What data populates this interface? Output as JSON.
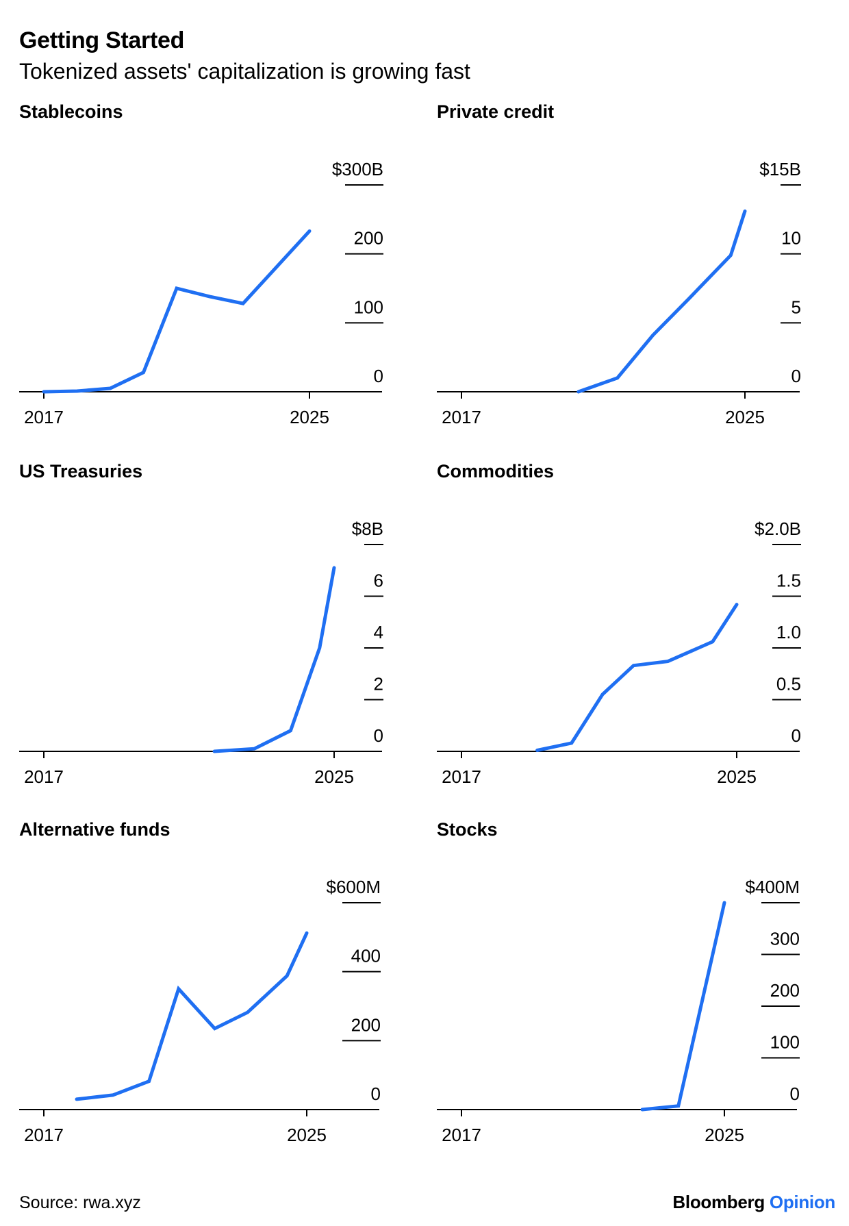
{
  "title": "Getting Started",
  "subtitle": "Tokenized assets' capitalization is growing fast",
  "source": "Source: rwa.xyz",
  "logo": {
    "brand": "Bloomberg",
    "section": "Opinion"
  },
  "colors": {
    "line": "#1f6ff2",
    "axis": "#000000",
    "text": "#000000",
    "accent": "#1f6ff2"
  },
  "chart_data": [
    {
      "type": "line",
      "title": "Stablecoins",
      "xlim": [
        2017,
        2025
      ],
      "x_ticks": [
        2017,
        2025
      ],
      "x_tick_labels": [
        "2017",
        "2025"
      ],
      "ylim": [
        0,
        300
      ],
      "y_ticks": [
        0,
        100,
        200,
        300
      ],
      "y_tick_labels": [
        "0",
        "100",
        "200",
        "$300B"
      ],
      "x": [
        2017,
        2018,
        2019,
        2020,
        2021,
        2022,
        2023,
        2025
      ],
      "values": [
        0,
        1,
        5,
        28,
        150,
        138,
        128,
        233
      ]
    },
    {
      "type": "line",
      "title": "Private credit",
      "xlim": [
        2017,
        2025
      ],
      "x_ticks": [
        2017,
        2025
      ],
      "x_tick_labels": [
        "2017",
        "2025"
      ],
      "ylim": [
        0,
        15
      ],
      "y_ticks": [
        0,
        5,
        10,
        15
      ],
      "y_tick_labels": [
        "0",
        "5",
        "10",
        "$15B"
      ],
      "x": [
        2020.3,
        2021.4,
        2022.4,
        2023.4,
        2024.6,
        2025
      ],
      "values": [
        0,
        1,
        4.1,
        6.7,
        9.9,
        13.1
      ]
    },
    {
      "type": "line",
      "title": "US Treasuries",
      "xlim": [
        2017,
        2025
      ],
      "x_ticks": [
        2017,
        2025
      ],
      "x_tick_labels": [
        "2017",
        "2025"
      ],
      "ylim": [
        0,
        8
      ],
      "y_ticks": [
        0,
        2,
        4,
        6,
        8
      ],
      "y_tick_labels": [
        "0",
        "2",
        "4",
        "6",
        "$8B"
      ],
      "x": [
        2021.7,
        2022.8,
        2023.8,
        2024.6,
        2025
      ],
      "values": [
        0,
        0.1,
        0.8,
        4.0,
        7.1
      ]
    },
    {
      "type": "line",
      "title": "Commodities",
      "xlim": [
        2017,
        2025
      ],
      "x_ticks": [
        2017,
        2025
      ],
      "x_tick_labels": [
        "2017",
        "2025"
      ],
      "ylim": [
        0,
        2.0
      ],
      "y_ticks": [
        0,
        0.5,
        1.0,
        1.5,
        2.0
      ],
      "y_tick_labels": [
        "0",
        "0.5",
        "1.0",
        "1.5",
        "$2.0B"
      ],
      "x": [
        2019.2,
        2020.2,
        2021.1,
        2022.0,
        2023.0,
        2024.3,
        2025
      ],
      "values": [
        0.01,
        0.08,
        0.55,
        0.83,
        0.87,
        1.06,
        1.42
      ]
    },
    {
      "type": "line",
      "title": "Alternative funds",
      "xlim": [
        2017,
        2025
      ],
      "x_ticks": [
        2017,
        2025
      ],
      "x_tick_labels": [
        "2017",
        "2025"
      ],
      "ylim": [
        0,
        600
      ],
      "y_ticks": [
        0,
        200,
        400,
        600
      ],
      "y_tick_labels": [
        "0",
        "200",
        "400",
        "$600M"
      ],
      "x": [
        2018,
        2019.1,
        2020.2,
        2021.1,
        2022.2,
        2023.2,
        2024.4,
        2025
      ],
      "values": [
        30,
        42,
        82,
        350,
        235,
        282,
        388,
        512
      ]
    },
    {
      "type": "line",
      "title": "Stocks",
      "xlim": [
        2017,
        2025
      ],
      "x_ticks": [
        2017,
        2025
      ],
      "x_tick_labels": [
        "2017",
        "2025"
      ],
      "ylim": [
        0,
        400
      ],
      "y_ticks": [
        0,
        100,
        200,
        300,
        400
      ],
      "y_tick_labels": [
        "0",
        "100",
        "200",
        "300",
        "$400M"
      ],
      "x": [
        2022.5,
        2023.6,
        2025
      ],
      "values": [
        0,
        7,
        400
      ]
    }
  ]
}
